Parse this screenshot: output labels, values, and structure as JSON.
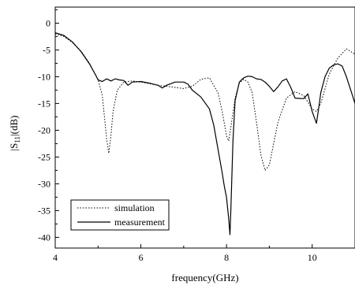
{
  "chart_data": {
    "type": "line",
    "xlabel": "frequency(GHz)",
    "ylabel_main": "|S",
    "ylabel_sub": "11",
    "ylabel_tail": "|(dB)",
    "xlim": [
      4,
      11
    ],
    "ylim": [
      -42,
      3
    ],
    "x_ticks": [
      4,
      6,
      8,
      10
    ],
    "y_ticks": [
      0,
      -5,
      -10,
      -15,
      -20,
      -25,
      -30,
      -35,
      -40
    ],
    "grid": false,
    "legend_position": "bottom-left",
    "series": [
      {
        "name": "simulation",
        "style": "dotted",
        "x": [
          4.0,
          4.2,
          4.4,
          4.6,
          4.8,
          5.0,
          5.1,
          5.15,
          5.2,
          5.25,
          5.3,
          5.35,
          5.45,
          5.6,
          5.8,
          6.0,
          6.2,
          6.4,
          6.6,
          6.8,
          7.0,
          7.2,
          7.4,
          7.6,
          7.8,
          7.9,
          8.0,
          8.05,
          8.1,
          8.2,
          8.3,
          8.4,
          8.5,
          8.6,
          8.7,
          8.8,
          8.9,
          9.0,
          9.2,
          9.4,
          9.6,
          9.8,
          10.0,
          10.1,
          10.2,
          10.4,
          10.6,
          10.8,
          11.0
        ],
        "y": [
          -2.0,
          -2.5,
          -3.6,
          -5.2,
          -7.5,
          -10.5,
          -13.5,
          -17.5,
          -21.5,
          -24.3,
          -21.0,
          -16.5,
          -12.5,
          -11.0,
          -10.8,
          -11.0,
          -11.3,
          -11.6,
          -11.8,
          -12.0,
          -12.2,
          -11.8,
          -10.5,
          -10.2,
          -13.0,
          -16.5,
          -21.0,
          -22.0,
          -19.5,
          -14.0,
          -11.2,
          -10.5,
          -11.0,
          -13.0,
          -18.5,
          -24.5,
          -27.5,
          -26.5,
          -18.5,
          -14.0,
          -12.8,
          -13.5,
          -16.0,
          -16.5,
          -15.0,
          -9.5,
          -6.5,
          -4.8,
          -5.8
        ]
      },
      {
        "name": "measurement",
        "style": "solid",
        "x": [
          4.0,
          4.2,
          4.4,
          4.6,
          4.8,
          4.95,
          5.0,
          5.1,
          5.2,
          5.3,
          5.4,
          5.5,
          5.6,
          5.7,
          5.8,
          6.0,
          6.2,
          6.4,
          6.5,
          6.6,
          6.8,
          7.0,
          7.1,
          7.2,
          7.4,
          7.6,
          7.7,
          7.8,
          7.9,
          7.95,
          8.0,
          8.05,
          8.08,
          8.1,
          8.15,
          8.2,
          8.3,
          8.4,
          8.5,
          8.6,
          8.7,
          8.8,
          8.9,
          9.0,
          9.1,
          9.2,
          9.3,
          9.4,
          9.5,
          9.6,
          9.8,
          9.9,
          10.0,
          10.1,
          10.15,
          10.2,
          10.3,
          10.4,
          10.5,
          10.6,
          10.7,
          10.8,
          10.9,
          11.0
        ],
        "y": [
          -1.8,
          -2.3,
          -3.5,
          -5.3,
          -7.6,
          -9.8,
          -10.6,
          -10.9,
          -10.4,
          -10.8,
          -10.4,
          -10.6,
          -10.7,
          -11.6,
          -11.0,
          -10.9,
          -11.2,
          -11.6,
          -12.1,
          -11.6,
          -11.0,
          -11.0,
          -11.4,
          -12.5,
          -13.8,
          -16.0,
          -19.0,
          -23.5,
          -28.0,
          -30.5,
          -32.5,
          -36.5,
          -39.5,
          -35.0,
          -22.0,
          -14.5,
          -11.0,
          -10.2,
          -9.9,
          -10.0,
          -10.4,
          -10.5,
          -11.0,
          -11.8,
          -12.8,
          -11.9,
          -10.8,
          -10.4,
          -12.0,
          -14.0,
          -14.1,
          -13.2,
          -16.5,
          -18.7,
          -16.0,
          -13.0,
          -10.0,
          -8.4,
          -7.8,
          -7.6,
          -8.0,
          -10.0,
          -12.5,
          -15.0
        ]
      }
    ]
  }
}
